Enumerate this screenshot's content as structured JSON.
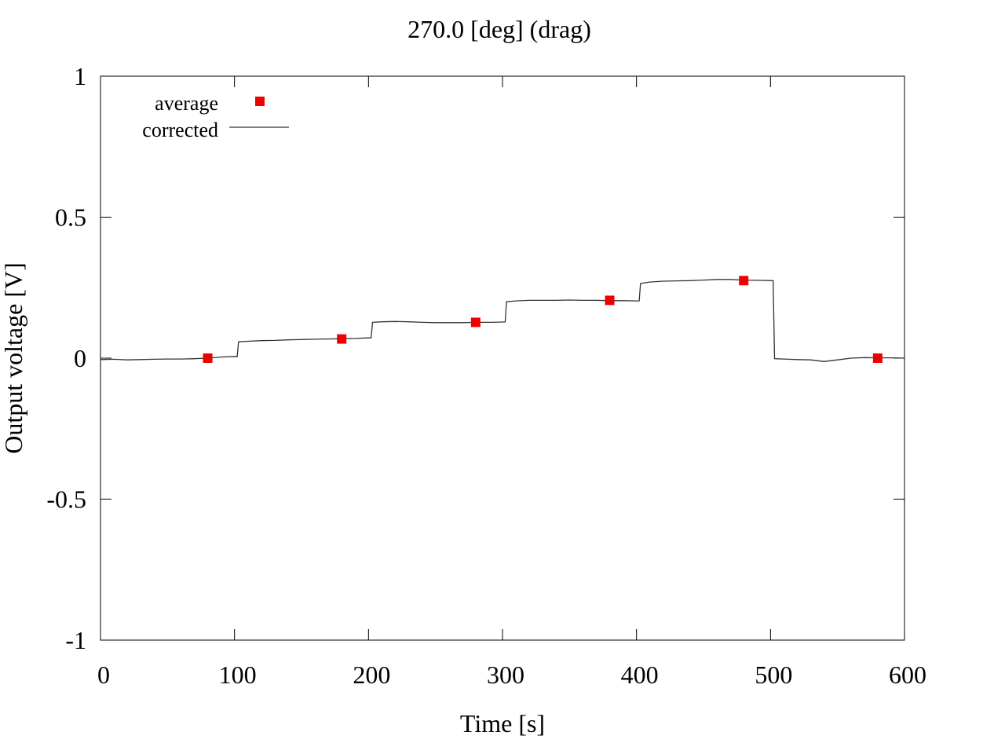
{
  "chart_data": {
    "type": "line",
    "title": "270.0 [deg] (drag)",
    "xlabel": "Time [s]",
    "ylabel": "Output voltage [V]",
    "xlim": [
      0,
      600
    ],
    "ylim": [
      -1,
      1
    ],
    "x_ticks": [
      0,
      100,
      200,
      300,
      400,
      500,
      600
    ],
    "x_tick_labels": [
      "0",
      "100",
      "200",
      "300",
      "400",
      "500",
      "600"
    ],
    "y_ticks": [
      -1,
      -0.5,
      0,
      0.5,
      1
    ],
    "y_tick_labels": [
      "-1",
      "-0.5",
      "0",
      "0.5",
      "1"
    ],
    "grid": false,
    "legend_position": "top-left",
    "series": [
      {
        "name": "average",
        "kind": "points",
        "marker": "square",
        "color": "#ee0000",
        "x": [
          80,
          180,
          280,
          380,
          480,
          580
        ],
        "y": [
          0.0,
          0.068,
          0.127,
          0.205,
          0.275,
          0.0
        ]
      },
      {
        "name": "corrected",
        "kind": "line",
        "color": "#333333",
        "x": [
          0,
          10,
          20,
          30,
          40,
          50,
          60,
          70,
          80,
          90,
          100,
          102,
          103,
          110,
          120,
          130,
          140,
          150,
          160,
          170,
          180,
          190,
          200,
          202,
          203,
          210,
          220,
          230,
          240,
          250,
          260,
          270,
          280,
          290,
          300,
          302,
          303,
          310,
          320,
          330,
          340,
          350,
          360,
          370,
          380,
          390,
          400,
          402,
          403,
          410,
          420,
          430,
          440,
          450,
          460,
          470,
          480,
          490,
          502,
          503,
          510,
          520,
          530,
          540,
          550,
          560,
          570,
          580,
          590,
          600
        ],
        "y": [
          -0.005,
          -0.004,
          -0.006,
          -0.005,
          -0.004,
          -0.003,
          -0.003,
          -0.002,
          0.0,
          0.004,
          0.006,
          0.005,
          0.058,
          0.06,
          0.062,
          0.063,
          0.065,
          0.066,
          0.067,
          0.068,
          0.069,
          0.07,
          0.072,
          0.072,
          0.127,
          0.129,
          0.13,
          0.129,
          0.127,
          0.126,
          0.126,
          0.126,
          0.127,
          0.127,
          0.128,
          0.128,
          0.2,
          0.203,
          0.205,
          0.205,
          0.205,
          0.206,
          0.205,
          0.205,
          0.204,
          0.204,
          0.203,
          0.203,
          0.265,
          0.27,
          0.273,
          0.274,
          0.275,
          0.277,
          0.279,
          0.279,
          0.277,
          0.276,
          0.275,
          -0.002,
          -0.003,
          -0.005,
          -0.006,
          -0.012,
          -0.006,
          0.0,
          0.002,
          0.001,
          0.001,
          0.0
        ]
      }
    ]
  }
}
